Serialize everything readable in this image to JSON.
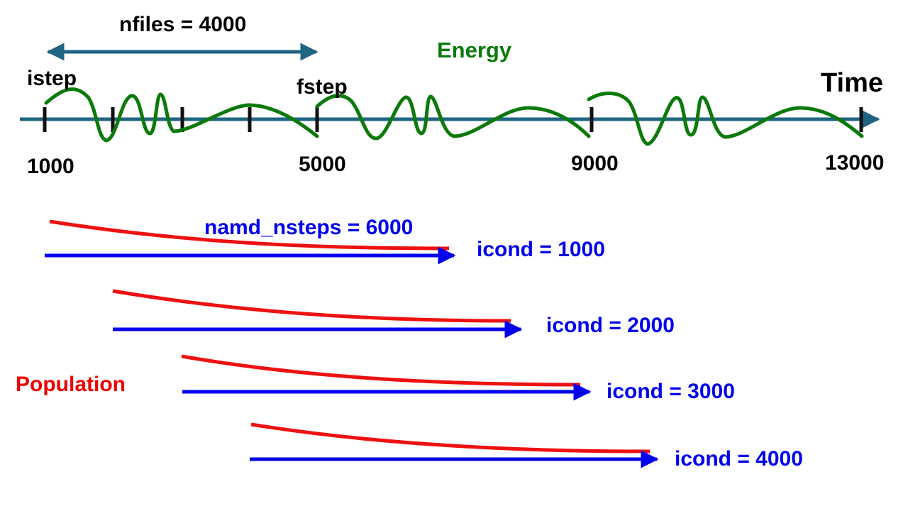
{
  "colors": {
    "timeline": "#1f6482",
    "energy": "#0b7a0b",
    "population": "#ee1111",
    "trajectory": "#0000ee",
    "ticks": "#111111"
  },
  "labels": {
    "nfiles": "nfiles = 4000",
    "energy": "Energy",
    "istep": "istep",
    "fstep": "fstep",
    "time": "Time",
    "namd_nsteps": "namd_nsteps = 6000",
    "population": "Population"
  },
  "timeline": {
    "ticks": [
      "1000",
      "5000",
      "9000",
      "13000"
    ]
  },
  "trajectories": [
    {
      "label": "icond = 1000"
    },
    {
      "label": "icond = 2000"
    },
    {
      "label": "icond = 3000"
    },
    {
      "label": "icond = 4000"
    }
  ]
}
